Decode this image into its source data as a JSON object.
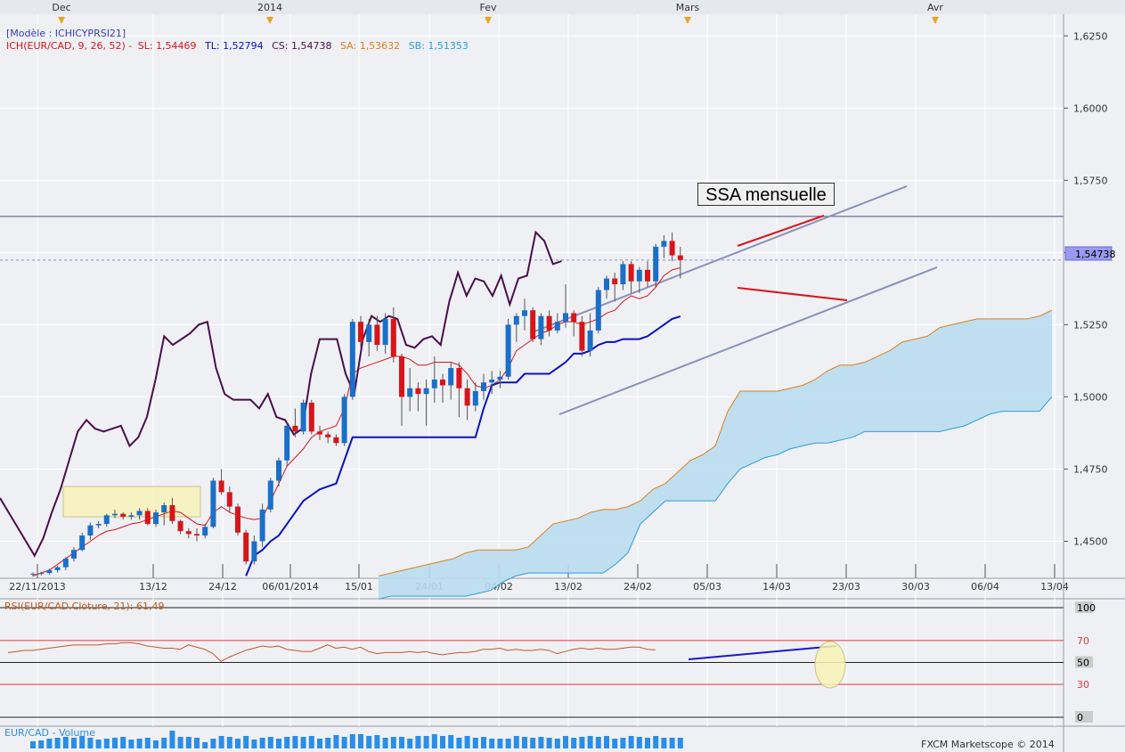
{
  "top_months": [
    "Dec",
    "2014",
    "Fev",
    "Mars",
    "Avr"
  ],
  "legend": {
    "model": "[Modèle : ICHICYPRSI21]",
    "ich": "ICH(EUR/CAD, 9, 26, 52) -",
    "sl": "SL: 1,54469",
    "tl": "TL: 1,52794",
    "cs": "CS: 1,54738",
    "sa": "SA: 1,53632",
    "sb": "SB: 1,51353"
  },
  "annotation_ssa": "SSA mensuelle",
  "price_tag": "1,54738",
  "rsi_legend": "RSI(EUR/CAD.Cloture, 21): 61,49",
  "volume_legend": "EUR/CAD - Volume",
  "copyright": "FXCM Marketscope © 2014",
  "colors": {
    "background": "#eef0f4",
    "bull_candle": "#1a6fc9",
    "bear_candle": "#d8151a",
    "tenkan": "#d8151a",
    "kijun": "#0a12c0",
    "chikou": "#4a0e4a",
    "cloud_fill": "#b9dcef",
    "ssa_line": "#e07f1a",
    "ssb_line": "#2a9fd8",
    "channel": "#8c90b8",
    "volume": "#2a8de8"
  },
  "chart_data": [
    {
      "type": "candlestick",
      "instrument": "EUR/CAD",
      "y_ticks": [
        "1,6250",
        "1,6000",
        "1,5750",
        "1,5500",
        "1,5250",
        "1,5000",
        "1,4750",
        "1,4500"
      ],
      "ylim": [
        1.4375,
        1.6325
      ],
      "x_tick_labels": [
        "22/11/2013",
        "13/12",
        "24/12",
        "06/01/2014",
        "15/01",
        "24/01",
        "04/02",
        "13/02",
        "24/02",
        "05/03",
        "14/03",
        "23/03",
        "30/03",
        "06/04",
        "13/04"
      ],
      "last_close": 1.54738,
      "horizontal_level": 1.5625,
      "candles": [
        [
          1.4385,
          1.4392,
          1.4378,
          1.4388
        ],
        [
          1.4388,
          1.4395,
          1.4382,
          1.439
        ],
        [
          1.439,
          1.4405,
          1.4385,
          1.44
        ],
        [
          1.44,
          1.4415,
          1.4392,
          1.441
        ],
        [
          1.441,
          1.4445,
          1.44,
          1.444
        ],
        [
          1.444,
          1.448,
          1.443,
          1.447
        ],
        [
          1.447,
          1.453,
          1.4465,
          1.452
        ],
        [
          1.452,
          1.4565,
          1.4505,
          1.4555
        ],
        [
          1.4555,
          1.457,
          1.4545,
          1.456
        ],
        [
          1.456,
          1.4595,
          1.455,
          1.459
        ],
        [
          1.459,
          1.461,
          1.458,
          1.4595
        ],
        [
          1.4595,
          1.46,
          1.4575,
          1.4585
        ],
        [
          1.4585,
          1.46,
          1.4575,
          1.459
        ],
        [
          1.459,
          1.4615,
          1.4575,
          1.4605
        ],
        [
          1.4605,
          1.4615,
          1.4555,
          1.456
        ],
        [
          1.456,
          1.461,
          1.455,
          1.46
        ],
        [
          1.46,
          1.4635,
          1.4555,
          1.4625
        ],
        [
          1.4625,
          1.465,
          1.456,
          1.457
        ],
        [
          1.457,
          1.4575,
          1.4525,
          1.4535
        ],
        [
          1.4535,
          1.4545,
          1.451,
          1.4525
        ],
        [
          1.4525,
          1.4545,
          1.45,
          1.452
        ],
        [
          1.452,
          1.456,
          1.451,
          1.455
        ],
        [
          1.455,
          1.472,
          1.4545,
          1.471
        ],
        [
          1.471,
          1.475,
          1.466,
          1.467
        ],
        [
          1.467,
          1.469,
          1.46,
          1.462
        ],
        [
          1.462,
          1.463,
          1.452,
          1.453
        ],
        [
          1.453,
          1.454,
          1.442,
          1.443
        ],
        [
          1.443,
          1.452,
          1.442,
          1.45
        ],
        [
          1.45,
          1.463,
          1.448,
          1.461
        ],
        [
          1.461,
          1.472,
          1.46,
          1.471
        ],
        [
          1.471,
          1.479,
          1.469,
          1.478
        ],
        [
          1.478,
          1.491,
          1.476,
          1.49
        ],
        [
          1.49,
          1.496,
          1.486,
          1.488
        ],
        [
          1.488,
          1.499,
          1.487,
          1.498
        ],
        [
          1.498,
          1.499,
          1.487,
          1.488
        ],
        [
          1.488,
          1.49,
          1.485,
          1.487
        ],
        [
          1.487,
          1.488,
          1.484,
          1.486
        ],
        [
          1.486,
          1.487,
          1.483,
          1.484
        ],
        [
          1.484,
          1.501,
          1.483,
          1.5
        ],
        [
          1.5,
          1.527,
          1.499,
          1.526
        ],
        [
          1.526,
          1.528,
          1.517,
          1.519
        ],
        [
          1.519,
          1.527,
          1.514,
          1.525
        ],
        [
          1.525,
          1.528,
          1.516,
          1.518
        ],
        [
          1.518,
          1.529,
          1.515,
          1.527
        ],
        [
          1.527,
          1.531,
          1.512,
          1.514
        ],
        [
          1.514,
          1.515,
          1.49,
          1.5
        ],
        [
          1.5,
          1.51,
          1.495,
          1.503
        ],
        [
          1.503,
          1.505,
          1.495,
          1.501
        ],
        [
          1.501,
          1.506,
          1.49,
          1.503
        ],
        [
          1.503,
          1.514,
          1.498,
          1.506
        ],
        [
          1.506,
          1.508,
          1.498,
          1.504
        ],
        [
          1.504,
          1.512,
          1.499,
          1.51
        ],
        [
          1.51,
          1.512,
          1.493,
          1.503
        ],
        [
          1.503,
          1.506,
          1.492,
          1.497
        ],
        [
          1.497,
          1.505,
          1.495,
          1.502
        ],
        [
          1.502,
          1.508,
          1.499,
          1.505
        ],
        [
          1.505,
          1.509,
          1.501,
          1.506
        ],
        [
          1.506,
          1.509,
          1.503,
          1.507
        ],
        [
          1.507,
          1.527,
          1.506,
          1.525
        ],
        [
          1.525,
          1.529,
          1.519,
          1.528
        ],
        [
          1.528,
          1.534,
          1.523,
          1.53
        ],
        [
          1.53,
          1.531,
          1.519,
          1.52
        ],
        [
          1.52,
          1.529,
          1.518,
          1.528
        ],
        [
          1.528,
          1.53,
          1.521,
          1.523
        ],
        [
          1.523,
          1.529,
          1.522,
          1.526
        ],
        [
          1.526,
          1.539,
          1.524,
          1.529
        ],
        [
          1.529,
          1.53,
          1.521,
          1.526
        ],
        [
          1.526,
          1.528,
          1.514,
          1.516
        ],
        [
          1.516,
          1.529,
          1.514,
          1.523
        ],
        [
          1.523,
          1.538,
          1.522,
          1.537
        ],
        [
          1.537,
          1.542,
          1.534,
          1.541
        ],
        [
          1.541,
          1.543,
          1.533,
          1.539
        ],
        [
          1.539,
          1.547,
          1.537,
          1.546
        ],
        [
          1.546,
          1.547,
          1.536,
          1.54
        ],
        [
          1.54,
          1.545,
          1.536,
          1.544
        ],
        [
          1.544,
          1.547,
          1.538,
          1.54
        ],
        [
          1.54,
          1.553,
          1.538,
          1.552
        ],
        [
          1.552,
          1.556,
          1.548,
          1.554
        ],
        [
          1.554,
          1.557,
          1.547,
          1.549
        ],
        [
          1.549,
          1.552,
          1.541,
          1.5474
        ]
      ],
      "tenkan": [
        1.438,
        1.439,
        1.44,
        1.442,
        1.444,
        1.446,
        1.448,
        1.45,
        1.452,
        1.4535,
        1.454,
        1.455,
        1.456,
        1.4565,
        1.4575,
        1.4585,
        1.4595,
        1.4605,
        1.46,
        1.458,
        1.456,
        1.4555,
        1.46,
        1.462,
        1.46,
        1.459,
        1.458,
        1.4575,
        1.458,
        1.464,
        1.47,
        1.476,
        1.479,
        1.482,
        1.486,
        1.488,
        1.489,
        1.49,
        1.496,
        1.508,
        1.51,
        1.511,
        1.512,
        1.513,
        1.514,
        1.514,
        1.513,
        1.511,
        1.511,
        1.512,
        1.512,
        1.512,
        1.511,
        1.508,
        1.504,
        1.503,
        1.504,
        1.506,
        1.51,
        1.516,
        1.518,
        1.52,
        1.522,
        1.523,
        1.525,
        1.526,
        1.526,
        1.525,
        1.526,
        1.527,
        1.529,
        1.53,
        1.533,
        1.535,
        1.534,
        1.535,
        1.538,
        1.542,
        1.544,
        1.5447
      ],
      "kijun": [
        null,
        null,
        null,
        null,
        null,
        null,
        null,
        null,
        null,
        null,
        null,
        null,
        null,
        null,
        null,
        null,
        null,
        null,
        null,
        null,
        null,
        null,
        null,
        null,
        null,
        null,
        1.438,
        1.445,
        1.447,
        1.45,
        1.452,
        1.456,
        1.46,
        1.464,
        1.466,
        1.468,
        1.469,
        1.47,
        1.478,
        1.486,
        1.486,
        1.486,
        1.486,
        1.486,
        1.486,
        1.486,
        1.486,
        1.486,
        1.486,
        1.486,
        1.486,
        1.486,
        1.486,
        1.486,
        1.486,
        1.496,
        1.504,
        1.505,
        1.505,
        1.505,
        1.508,
        1.508,
        1.508,
        1.508,
        1.51,
        1.512,
        1.515,
        1.515,
        1.516,
        1.518,
        1.519,
        1.519,
        1.52,
        1.52,
        1.52,
        1.521,
        1.523,
        1.525,
        1.527,
        1.5279
      ],
      "chikou": [
        1.465,
        1.46,
        1.455,
        1.45,
        1.445,
        1.451,
        1.46,
        1.468,
        1.478,
        1.488,
        1.492,
        1.489,
        1.488,
        1.489,
        1.49,
        1.483,
        1.486,
        1.493,
        1.506,
        1.521,
        1.518,
        1.52,
        1.522,
        1.525,
        1.526,
        1.51,
        1.501,
        1.499,
        1.499,
        1.499,
        1.496,
        1.501,
        1.493,
        1.492,
        1.487,
        1.489,
        1.508,
        1.52,
        1.52,
        1.52,
        1.508,
        1.501,
        1.52,
        1.528,
        1.526,
        1.528,
        1.527,
        1.518,
        1.517,
        1.52,
        1.521,
        1.518,
        1.533,
        1.543,
        1.535,
        1.541,
        1.54,
        1.535,
        1.542,
        1.532,
        1.541,
        1.542,
        1.557,
        1.554,
        1.546,
        1.547
      ],
      "ssa": [
        1.438,
        1.439,
        1.44,
        1.441,
        1.442,
        1.443,
        1.444,
        1.446,
        1.447,
        1.447,
        1.447,
        1.447,
        1.448,
        1.452,
        1.456,
        1.457,
        1.458,
        1.46,
        1.461,
        1.461,
        1.462,
        1.464,
        1.468,
        1.47,
        1.474,
        1.478,
        1.48,
        1.483,
        1.495,
        1.502,
        1.502,
        1.502,
        1.502,
        1.503,
        1.504,
        1.506,
        1.509,
        1.511,
        1.511,
        1.512,
        1.514,
        1.516,
        1.519,
        1.52,
        1.521,
        1.524,
        1.525,
        1.526,
        1.527,
        1.527,
        1.527,
        1.527,
        1.527,
        1.528,
        1.53
      ],
      "ssb": [
        1.43,
        1.431,
        1.431,
        1.431,
        1.431,
        1.431,
        1.431,
        1.431,
        1.432,
        1.433,
        1.436,
        1.438,
        1.439,
        1.439,
        1.439,
        1.439,
        1.439,
        1.439,
        1.439,
        1.442,
        1.446,
        1.456,
        1.46,
        1.464,
        1.464,
        1.464,
        1.464,
        1.464,
        1.47,
        1.475,
        1.477,
        1.479,
        1.48,
        1.482,
        1.483,
        1.484,
        1.484,
        1.485,
        1.486,
        1.488,
        1.488,
        1.488,
        1.488,
        1.488,
        1.488,
        1.488,
        1.489,
        1.49,
        1.492,
        1.494,
        1.495,
        1.495,
        1.495,
        1.495,
        1.5
      ]
    },
    {
      "type": "line",
      "name": "RSI(EUR/CAD.Cloture, 21)",
      "levels": [
        100,
        70,
        50,
        30,
        0
      ],
      "ylim": [
        0,
        100
      ],
      "values": [
        59,
        60,
        61,
        61,
        62,
        63,
        64,
        65,
        66,
        66,
        66,
        66,
        67,
        67,
        68,
        68,
        67,
        65,
        64,
        63,
        63,
        62,
        66,
        64,
        62,
        58,
        51,
        55,
        58,
        61,
        63,
        65,
        64,
        65,
        62,
        61,
        60,
        60,
        63,
        66,
        63,
        64,
        62,
        64,
        60,
        58,
        59,
        59,
        59,
        60,
        59,
        60,
        58,
        57,
        58,
        59,
        59,
        60,
        62,
        62,
        63,
        61,
        62,
        61,
        61,
        62,
        61,
        58,
        60,
        62,
        63,
        62,
        63,
        62,
        62,
        63,
        64,
        64,
        62,
        61.49
      ]
    },
    {
      "type": "bar",
      "name": "EUR/CAD - Volume",
      "values": [
        8,
        9,
        11,
        12,
        13,
        12,
        14,
        12,
        10,
        11,
        12,
        13,
        10,
        11,
        12,
        9,
        12,
        20,
        13,
        13,
        12,
        7,
        11,
        14,
        13,
        11,
        14,
        10,
        12,
        13,
        11,
        13,
        14,
        13,
        14,
        11,
        12,
        15,
        13,
        16,
        16,
        14,
        15,
        12,
        13,
        13,
        11,
        14,
        14,
        16,
        14,
        15,
        12,
        14,
        12,
        13,
        11,
        11,
        11,
        14,
        13,
        12,
        13,
        12,
        11,
        14,
        12,
        13,
        14,
        13,
        14,
        11,
        12,
        14,
        13,
        12,
        14,
        12,
        12,
        12
      ]
    }
  ]
}
